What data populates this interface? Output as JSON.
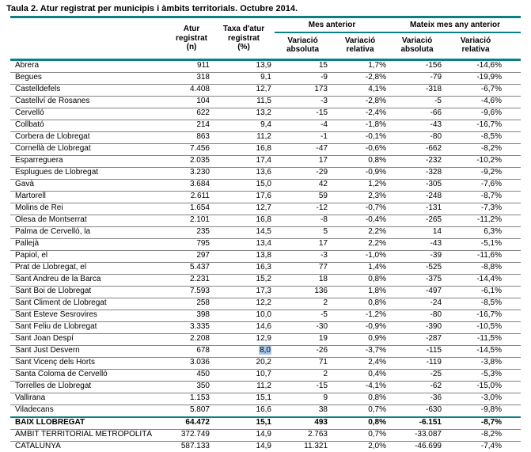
{
  "title": "Taula 2. Atur registrat per municipis i àmbits territorials. Octubre 2014.",
  "accent_color": "#0b7e86",
  "table": {
    "columns": {
      "atur": "Atur\nregistrat\n(n)",
      "taxa": "Taxa d'atur\nregistrat\n(%)",
      "group_mes_anterior": "Mes anterior",
      "group_mateix_mes": "Mateix mes any anterior",
      "variacio_absoluta": "Variació\nabsoluta",
      "variacio_relativa": "Variació\nrelativa"
    },
    "highlight": {
      "row_index": 24,
      "value_index": 1,
      "color": "#a9c9e8"
    },
    "rows": [
      {
        "name": "Abrera",
        "values": [
          "911",
          "13,9",
          "15",
          "1,7%",
          "-156",
          "-14,6%"
        ],
        "style": "normal"
      },
      {
        "name": "Begues",
        "values": [
          "318",
          "9,1",
          "-9",
          "-2,8%",
          "-79",
          "-19,9%"
        ],
        "style": "normal"
      },
      {
        "name": "Castelldefels",
        "values": [
          "4.408",
          "12,7",
          "173",
          "4,1%",
          "-318",
          "-6,7%"
        ],
        "style": "normal"
      },
      {
        "name": "Castellví de Rosanes",
        "values": [
          "104",
          "11,5",
          "-3",
          "-2,8%",
          "-5",
          "-4,6%"
        ],
        "style": "normal"
      },
      {
        "name": "Cervelló",
        "values": [
          "622",
          "13,2",
          "-15",
          "-2,4%",
          "-66",
          "-9,6%"
        ],
        "style": "normal"
      },
      {
        "name": "Collbató",
        "values": [
          "214",
          "9,4",
          "-4",
          "-1,8%",
          "-43",
          "-16,7%"
        ],
        "style": "normal"
      },
      {
        "name": "Corbera de Llobregat",
        "values": [
          "863",
          "11,2",
          "-1",
          "-0,1%",
          "-80",
          "-8,5%"
        ],
        "style": "normal"
      },
      {
        "name": "Cornellà de Llobregat",
        "values": [
          "7.456",
          "16,8",
          "-47",
          "-0,6%",
          "-662",
          "-8,2%"
        ],
        "style": "normal"
      },
      {
        "name": "Esparreguera",
        "values": [
          "2.035",
          "17,4",
          "17",
          "0,8%",
          "-232",
          "-10,2%"
        ],
        "style": "normal"
      },
      {
        "name": "Esplugues de Llobregat",
        "values": [
          "3.230",
          "13,6",
          "-29",
          "-0,9%",
          "-328",
          "-9,2%"
        ],
        "style": "normal"
      },
      {
        "name": "Gavà",
        "values": [
          "3.684",
          "15,0",
          "42",
          "1,2%",
          "-305",
          "-7,6%"
        ],
        "style": "normal"
      },
      {
        "name": "Martorell",
        "values": [
          "2.611",
          "17,6",
          "59",
          "2,3%",
          "-248",
          "-8,7%"
        ],
        "style": "normal"
      },
      {
        "name": "Molins de Rei",
        "values": [
          "1.654",
          "12,7",
          "-12",
          "-0,7%",
          "-131",
          "-7,3%"
        ],
        "style": "normal"
      },
      {
        "name": "Olesa de Montserrat",
        "values": [
          "2.101",
          "16,8",
          "-8",
          "-0,4%",
          "-265",
          "-11,2%"
        ],
        "style": "normal"
      },
      {
        "name": "Palma de Cervelló, la",
        "values": [
          "235",
          "14,5",
          "5",
          "2,2%",
          "14",
          "6,3%"
        ],
        "style": "normal"
      },
      {
        "name": "Pallejà",
        "values": [
          "795",
          "13,4",
          "17",
          "2,2%",
          "-43",
          "-5,1%"
        ],
        "style": "normal"
      },
      {
        "name": "Papiol, el",
        "values": [
          "297",
          "13,8",
          "-3",
          "-1,0%",
          "-39",
          "-11,6%"
        ],
        "style": "normal"
      },
      {
        "name": "Prat de Llobregat, el",
        "values": [
          "5.437",
          "16,3",
          "77",
          "1,4%",
          "-525",
          "-8,8%"
        ],
        "style": "normal"
      },
      {
        "name": "Sant Andreu de la Barca",
        "values": [
          "2.231",
          "15,2",
          "18",
          "0,8%",
          "-375",
          "-14,4%"
        ],
        "style": "normal"
      },
      {
        "name": "Sant Boi de Llobregat",
        "values": [
          "7.593",
          "17,3",
          "136",
          "1,8%",
          "-497",
          "-6,1%"
        ],
        "style": "normal"
      },
      {
        "name": "Sant Climent de Llobregat",
        "values": [
          "258",
          "12,2",
          "2",
          "0,8%",
          "-24",
          "-8,5%"
        ],
        "style": "normal"
      },
      {
        "name": "Sant Esteve Sesrovires",
        "values": [
          "398",
          "10,0",
          "-5",
          "-1,2%",
          "-80",
          "-16,7%"
        ],
        "style": "normal"
      },
      {
        "name": "Sant Feliu de Llobregat",
        "values": [
          "3.335",
          "14,6",
          "-30",
          "-0,9%",
          "-390",
          "-10,5%"
        ],
        "style": "normal"
      },
      {
        "name": "Sant Joan Despí",
        "values": [
          "2.208",
          "12,9",
          "19",
          "0,9%",
          "-287",
          "-11,5%"
        ],
        "style": "normal"
      },
      {
        "name": "Sant Just Desvern",
        "values": [
          "678",
          "8,0",
          "-26",
          "-3,7%",
          "-115",
          "-14,5%"
        ],
        "style": "normal"
      },
      {
        "name": "Sant Vicenç dels Horts",
        "values": [
          "3.036",
          "20,2",
          "71",
          "2,4%",
          "-119",
          "-3,8%"
        ],
        "style": "normal"
      },
      {
        "name": "Santa Coloma de Cervelló",
        "values": [
          "450",
          "10,7",
          "2",
          "0,4%",
          "-25",
          "-5,3%"
        ],
        "style": "normal"
      },
      {
        "name": "Torrelles de Llobregat",
        "values": [
          "350",
          "11,2",
          "-15",
          "-4,1%",
          "-62",
          "-15,0%"
        ],
        "style": "normal"
      },
      {
        "name": "Vallirana",
        "values": [
          "1.153",
          "15,1",
          "9",
          "0,8%",
          "-36",
          "-3,0%"
        ],
        "style": "normal"
      },
      {
        "name": "Viladecans",
        "values": [
          "5.807",
          "16,6",
          "38",
          "0,7%",
          "-630",
          "-9,8%"
        ],
        "style": "normal"
      },
      {
        "name": "BAIX LLOBREGAT",
        "values": [
          "64.472",
          "15,1",
          "493",
          "0,8%",
          "-6.151",
          "-8,7%"
        ],
        "style": "total_bold"
      },
      {
        "name": "ÀMBIT TERRITORIAL METROPOLITÀ",
        "values": [
          "372.749",
          "14,9",
          "2.763",
          "0,7%",
          "-33.087",
          "-8,2%"
        ],
        "style": "total"
      },
      {
        "name": "CATALUNYA",
        "values": [
          "587.133",
          "14,9",
          "11.321",
          "2,0%",
          "-46.699",
          "-7,4%"
        ],
        "style": "total"
      }
    ]
  }
}
